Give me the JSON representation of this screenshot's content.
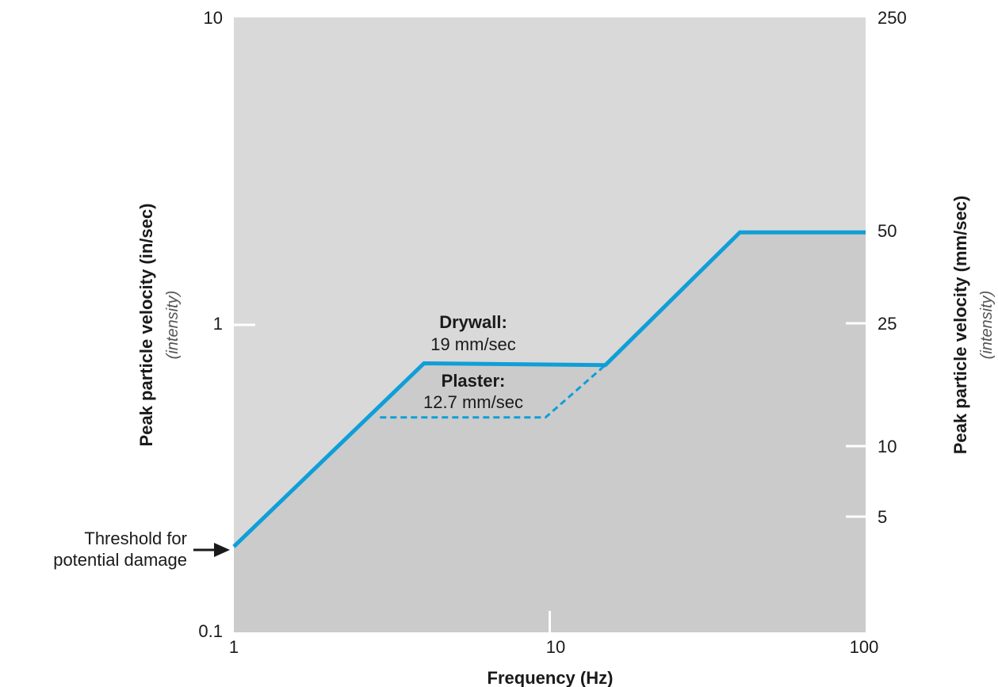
{
  "chart_data": {
    "type": "line",
    "xlabel": "Frequency (Hz)",
    "ylabel_left": "Peak particle velocity (in/sec)",
    "ylabel_left_sub": "(intensity)",
    "ylabel_right": "Peak particle velocity (mm/sec)",
    "ylabel_right_sub": "(intensity)",
    "x_scale": "log",
    "y_scale": "log",
    "xlim": [
      1,
      100
    ],
    "ylim_in_per_sec": [
      0.1,
      10
    ],
    "x_ticks": [
      "1",
      "10",
      "100"
    ],
    "y_ticks_left": [
      "0.1",
      "1",
      "10"
    ],
    "y_ticks_right": [
      "250",
      "50",
      "25",
      "10",
      "5"
    ],
    "series": [
      {
        "name": "Drywall",
        "style": "solid",
        "x": [
          1,
          4,
          15,
          40,
          100
        ],
        "y": [
          0.19,
          0.75,
          0.74,
          2.0,
          2.0
        ]
      },
      {
        "name": "Plaster",
        "style": "dashed",
        "x": [
          2.9,
          9.7,
          15
        ],
        "y": [
          0.5,
          0.5,
          0.74
        ]
      }
    ],
    "annotations": {
      "drywall_title": "Drywall:",
      "drywall_value": "19 mm/sec",
      "plaster_title": "Plaster:",
      "plaster_value": "12.7 mm/sec",
      "threshold_line1": "Threshold for",
      "threshold_line2": "potential damage"
    },
    "grid": false,
    "colors": {
      "line": "#0f9fd8",
      "region_above": "#d9d9d9",
      "region_below": "#cbcbcb",
      "tick_marks": "#ffffff",
      "text": "#1a1a1a"
    }
  }
}
